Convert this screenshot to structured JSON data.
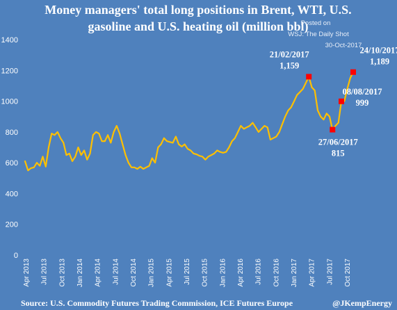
{
  "chart_data": {
    "type": "line",
    "title_line1": "Money managers' total long positions in Brent, WTI, U.S.",
    "title_line2": "gasoline and U.S. heating oil (million bbl)",
    "ylim": [
      0,
      1400
    ],
    "yticks": [
      0,
      200,
      400,
      600,
      800,
      1000,
      1200,
      1400
    ],
    "x_tick_labels": [
      "Apr 2013",
      "Jul 2013",
      "Oct 2013",
      "Jan 2014",
      "Apr 2014",
      "Jul 2014",
      "Oct 2014",
      "Jan 2015",
      "Apr 2015",
      "Jul 2015",
      "Oct 2015",
      "Jan 2016",
      "Apr 2016",
      "Jul 2016",
      "Oct 2016",
      "Jan 2017",
      "Apr 2017",
      "Jul 2017",
      "Oct 2017"
    ],
    "line_color": "#ffc000",
    "marker_color": "#ff0000",
    "series": [
      {
        "values": [
          610,
          550,
          565,
          570,
          600,
          580,
          640,
          575,
          700,
          790,
          780,
          800,
          760,
          730,
          650,
          660,
          610,
          640,
          700,
          650,
          680,
          620,
          660,
          780,
          800,
          790,
          740,
          740,
          780,
          730,
          800,
          840,
          790,
          720,
          650,
          600,
          570,
          570,
          560,
          575,
          560,
          570,
          580,
          630,
          600,
          700,
          720,
          760,
          740,
          735,
          730,
          770,
          720,
          705,
          720,
          690,
          680,
          660,
          655,
          645,
          640,
          620,
          640,
          650,
          660,
          680,
          670,
          665,
          670,
          700,
          740,
          760,
          800,
          840,
          820,
          830,
          840,
          860,
          830,
          800,
          820,
          840,
          830,
          750,
          760,
          770,
          800,
          850,
          900,
          940,
          960,
          1000,
          1040,
          1060,
          1080,
          1120,
          1159,
          1090,
          1070,
          940,
          900,
          880,
          920,
          900,
          815,
          840,
          860,
          999,
          1000,
          1080,
          1150,
          1189
        ]
      }
    ],
    "annotations": [
      {
        "date": "21/02/2017",
        "value": "1,159",
        "index": 96,
        "y": 1159
      },
      {
        "date": "27/06/2017",
        "value": "815",
        "index": 104,
        "y": 815
      },
      {
        "date": "08/08/2017",
        "value": "999",
        "index": 107,
        "y": 999
      },
      {
        "date": "24/10/2017",
        "value": "1,189",
        "index": 111,
        "y": 1189
      }
    ]
  },
  "watermark": {
    "line1": "Posted on",
    "line2": "WSJ: The Daily Shot",
    "line3": "30-Oct-2017"
  },
  "footer": {
    "source": "Source: U.S. Commodity Futures Trading Commission, ICE Futures Europe",
    "handle": "@JKempEnergy"
  }
}
